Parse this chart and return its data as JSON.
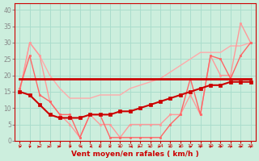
{
  "xlabel": "Vent moyen/en rafales ( km/h )",
  "background_color": "#cceedd",
  "grid_color": "#aaddcc",
  "x_ticks": [
    0,
    1,
    2,
    3,
    4,
    5,
    6,
    7,
    8,
    9,
    10,
    11,
    12,
    13,
    14,
    15,
    16,
    17,
    18,
    19,
    20,
    21,
    22,
    23
  ],
  "ylim": [
    0,
    42
  ],
  "xlim": [
    -0.5,
    23.5
  ],
  "yticks": [
    0,
    5,
    10,
    15,
    20,
    25,
    30,
    35,
    40
  ],
  "line_avg": {
    "x": [
      0,
      1,
      2,
      3,
      4,
      5,
      6,
      7,
      8,
      9,
      10,
      11,
      12,
      13,
      14,
      15,
      16,
      17,
      18,
      19,
      20,
      21,
      22,
      23
    ],
    "y": [
      15,
      14,
      11,
      8,
      7,
      7,
      7,
      8,
      8,
      8,
      9,
      9,
      10,
      11,
      12,
      13,
      14,
      15,
      16,
      17,
      17,
      18,
      18,
      18
    ],
    "color": "#cc0000",
    "lw": 1.5,
    "marker": "s",
    "ms": 2.5
  },
  "line_gust": {
    "x": [
      0,
      1,
      2,
      3,
      4,
      5,
      6,
      7,
      8,
      9,
      10,
      11,
      12,
      13,
      14,
      15,
      16,
      17,
      18,
      19,
      20,
      21,
      22,
      23
    ],
    "y": [
      15,
      30,
      26,
      12,
      8,
      5,
      1,
      8,
      5,
      5,
      1,
      5,
      5,
      5,
      5,
      8,
      8,
      14,
      8,
      26,
      20,
      20,
      36,
      30
    ],
    "color": "#ff9999",
    "lw": 1.0,
    "marker": "s",
    "ms": 2.0
  },
  "line_const_high": {
    "x": [
      0,
      23
    ],
    "y": [
      19,
      19
    ],
    "color": "#cc0000",
    "lw": 2.0,
    "marker": "none",
    "ms": 0
  },
  "line_trend_upper": {
    "x": [
      0,
      1,
      2,
      3,
      4,
      5,
      6,
      7,
      8,
      9,
      10,
      11,
      12,
      13,
      14,
      15,
      16,
      17,
      18,
      19,
      20,
      21,
      22,
      23
    ],
    "y": [
      15,
      30,
      26,
      20,
      16,
      13,
      13,
      13,
      14,
      14,
      14,
      16,
      17,
      18,
      19,
      21,
      23,
      25,
      27,
      27,
      27,
      29,
      29,
      30
    ],
    "color": "#ffaaaa",
    "lw": 1.0,
    "marker": "none",
    "ms": 0
  },
  "line_trend_lower": {
    "x": [
      0,
      1,
      2,
      3,
      4,
      5,
      6,
      7,
      8,
      9,
      10,
      11,
      12,
      13,
      14,
      15,
      16,
      17,
      18,
      19,
      20,
      21,
      22,
      23
    ],
    "y": [
      16,
      26,
      14,
      12,
      8,
      8,
      1,
      8,
      8,
      1,
      1,
      1,
      1,
      1,
      1,
      5,
      8,
      19,
      8,
      26,
      25,
      19,
      26,
      30
    ],
    "color": "#ff6666",
    "lw": 1.0,
    "marker": "s",
    "ms": 2.0
  }
}
